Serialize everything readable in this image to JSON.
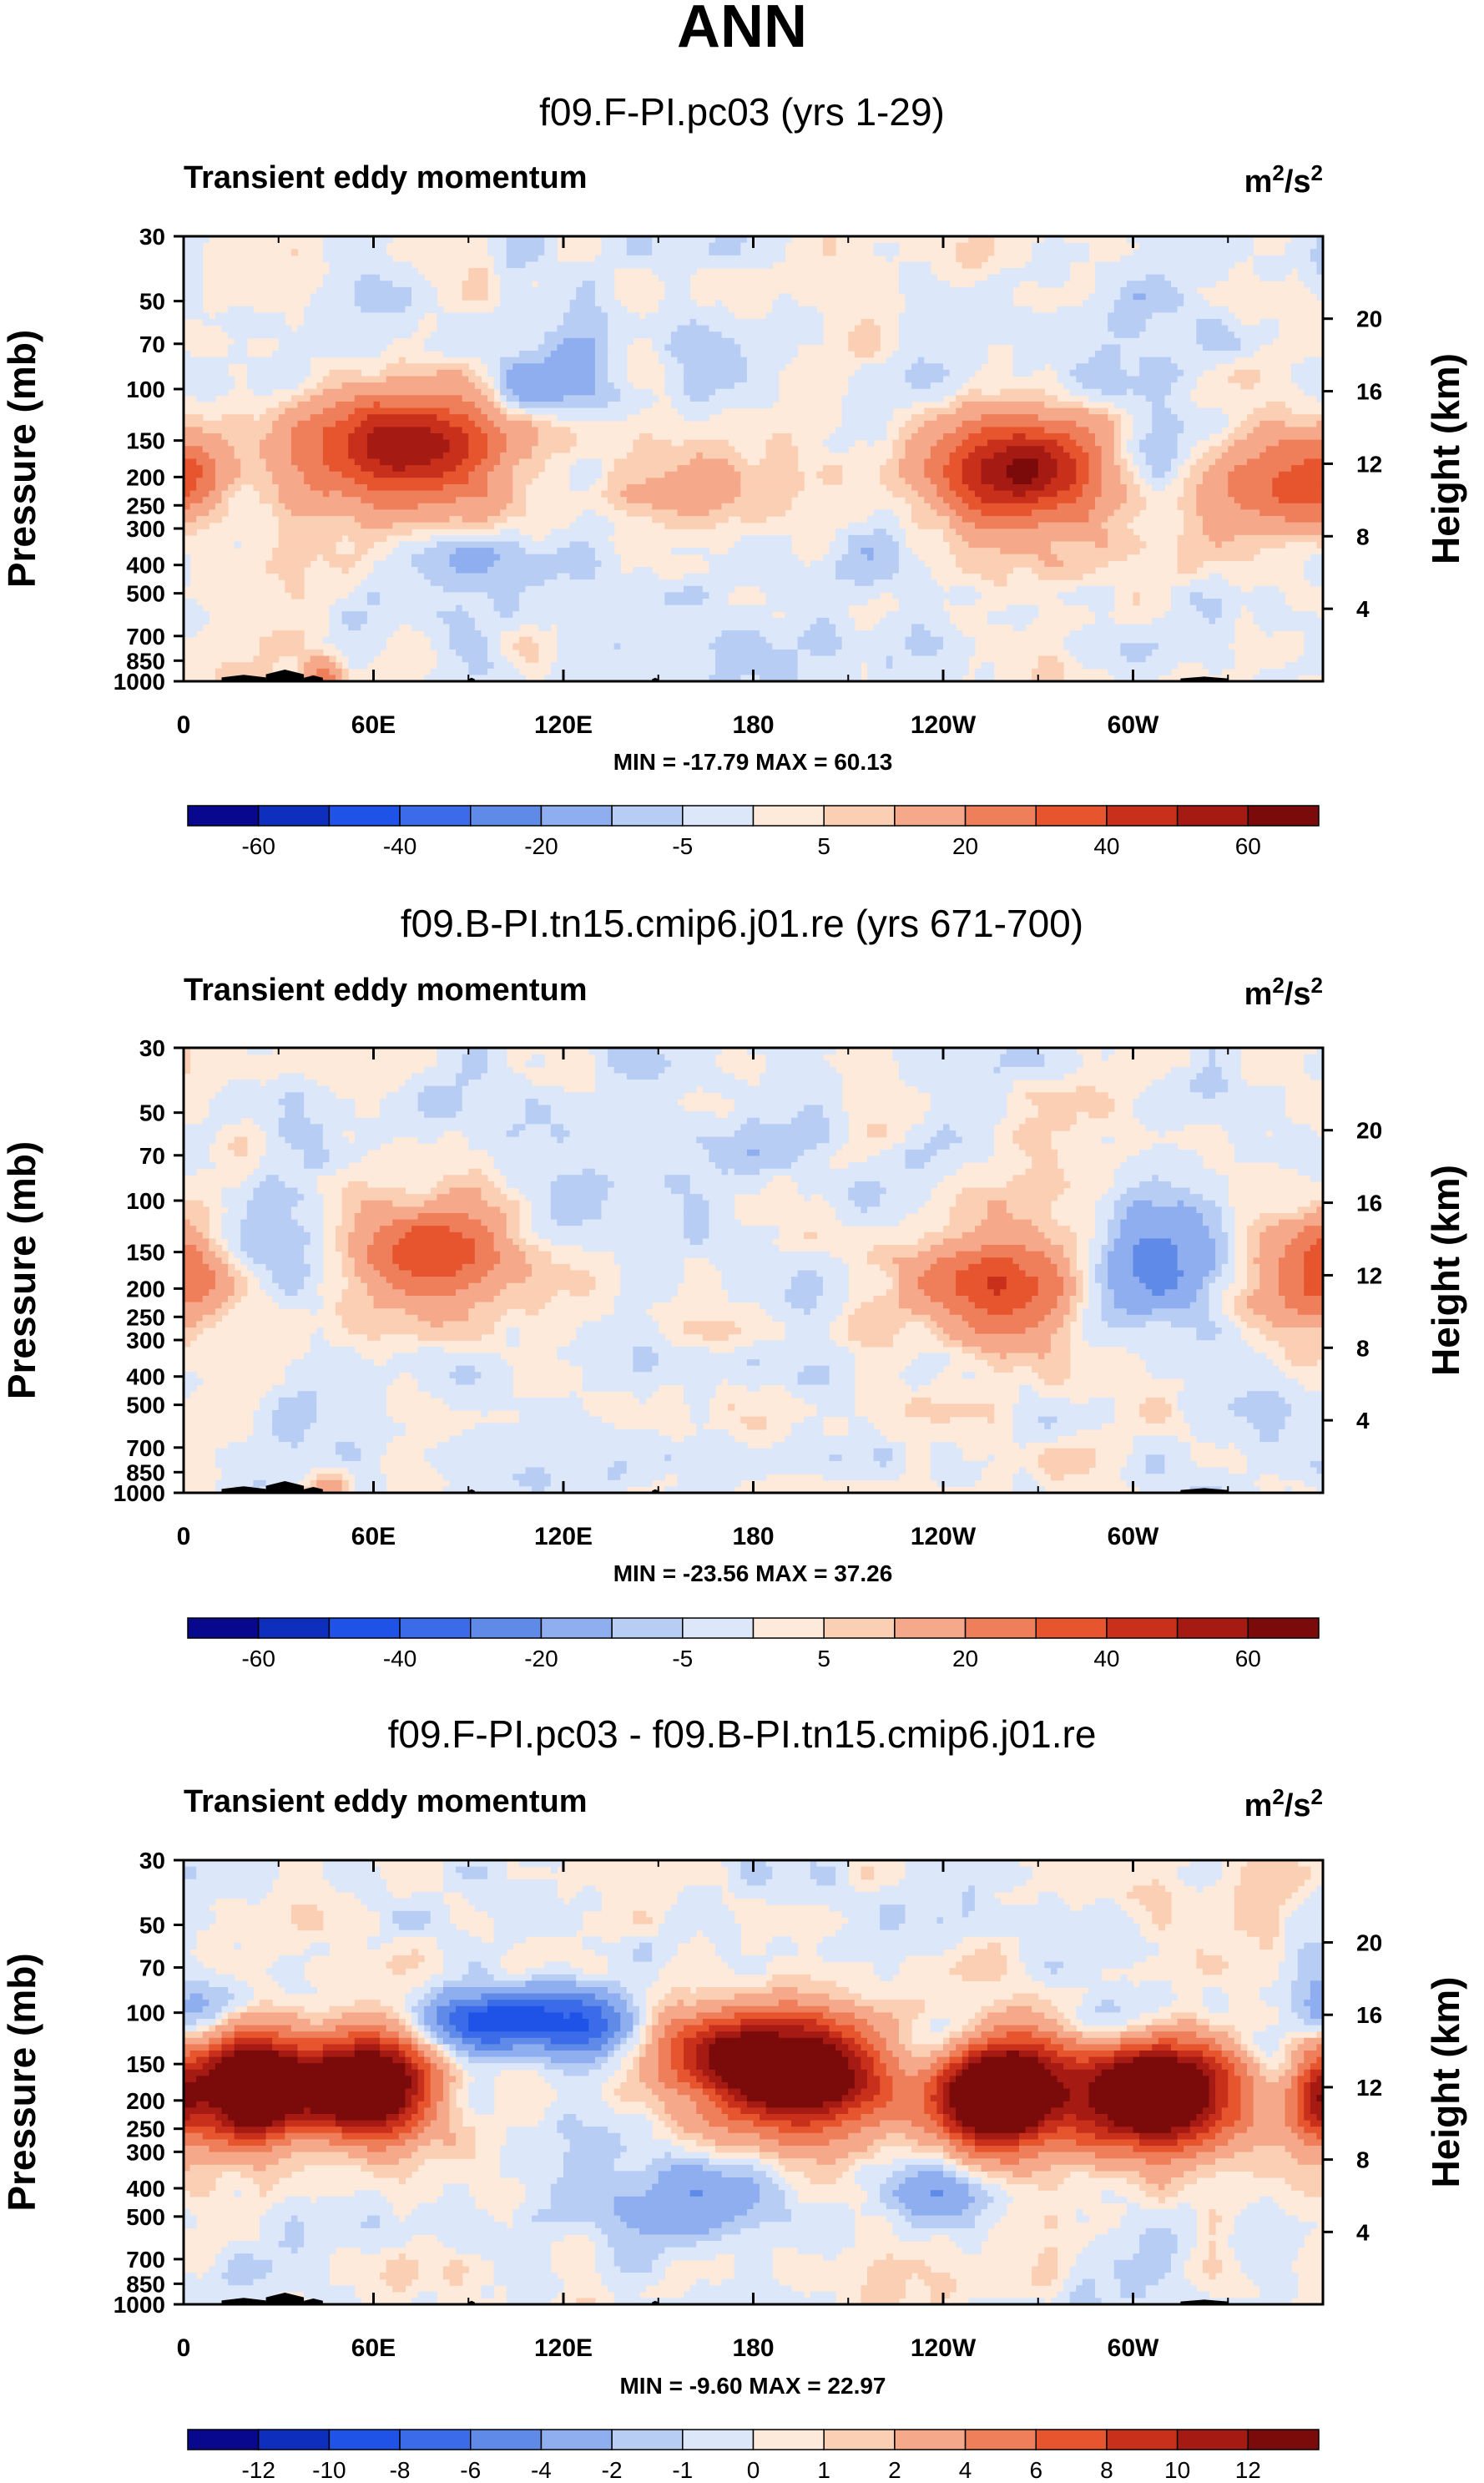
{
  "figure": {
    "title": "ANN"
  },
  "colors": {
    "full_scale": [
      "#08088f",
      "#0e2fbd",
      "#1f52e6",
      "#3b6be8",
      "#5f8ae8",
      "#8eaef0",
      "#b8cdf4",
      "#dce7fa",
      "#fdeadb",
      "#fbcfb3",
      "#f6a98a",
      "#ef7e5b",
      "#e7552f",
      "#c9301b",
      "#a51a12",
      "#7b0a0a"
    ],
    "diff_scale": [
      "#08088f",
      "#0e2fbd",
      "#1f52e6",
      "#3b6be8",
      "#5f8ae8",
      "#8eaef0",
      "#b8cdf4",
      "#dce7fa",
      "#fdeadb",
      "#fbcfb3",
      "#f6a98a",
      "#ef7e5b",
      "#e7552f",
      "#c9301b",
      "#a51a12",
      "#7b0a0a"
    ],
    "terrain": "#000000"
  },
  "panels": [
    {
      "subtitle": "f09.F-PI.pc03 (yrs 1-29)",
      "variable": "Transient eddy momentum",
      "units_base": "m",
      "units_sup1": "2",
      "units_mid": "/s",
      "units_sup2": "2",
      "ylabel": "Pressure (mb)",
      "ylabel_right": "Height (km)",
      "minmax": "MIN = -17.79  MAX = 60.13",
      "colorbar_labels": [
        "-60",
        "-40",
        "-20",
        "-5",
        "5",
        "20",
        "40",
        "60"
      ]
    },
    {
      "subtitle": "f09.B-PI.tn15.cmip6.j01.re (yrs 671-700)",
      "variable": "Transient eddy momentum",
      "units_base": "m",
      "units_sup1": "2",
      "units_mid": "/s",
      "units_sup2": "2",
      "ylabel": "Pressure (mb)",
      "ylabel_right": "Height (km)",
      "minmax": "MIN = -23.56  MAX = 37.26",
      "colorbar_labels": [
        "-60",
        "-40",
        "-20",
        "-5",
        "5",
        "20",
        "40",
        "60"
      ]
    },
    {
      "subtitle": "f09.F-PI.pc03 - f09.B-PI.tn15.cmip6.j01.re",
      "variable": "Transient eddy momentum",
      "units_base": "m",
      "units_sup1": "2",
      "units_mid": "/s",
      "units_sup2": "2",
      "ylabel": "Pressure (mb)",
      "ylabel_right": "Height (km)",
      "minmax": "MIN = -9.60  MAX = 22.97",
      "colorbar_labels": [
        "-12",
        "-10",
        "-8",
        "-6",
        "-4",
        "-2",
        "-1",
        "0",
        "1",
        "2",
        "4",
        "6",
        "8",
        "10",
        "12"
      ]
    }
  ],
  "chart_data": [
    {
      "type": "heatmap",
      "title": "f09.F-PI.pc03 (yrs 1-29)",
      "variable": "Transient eddy momentum",
      "units": "m2/s2",
      "x_ticks": [
        "0",
        "60E",
        "120E",
        "180",
        "120W",
        "60W"
      ],
      "x_tick_lon": [
        0,
        60,
        120,
        180,
        240,
        300
      ],
      "x_range": [
        0,
        360
      ],
      "y_ticks": [
        "30",
        "50",
        "70",
        "100",
        "150",
        "200",
        "250",
        "300",
        "400",
        "500",
        "700",
        "850",
        "1000"
      ],
      "y_tick_p": [
        30,
        50,
        70,
        100,
        150,
        200,
        250,
        300,
        400,
        500,
        700,
        850,
        1000
      ],
      "y_range_mb": [
        1000,
        30
      ],
      "y_right_ticks": [
        "20",
        "16",
        "12",
        "8",
        "4"
      ],
      "y_right_km": [
        20,
        16,
        12,
        8,
        4
      ],
      "min": -17.79,
      "max": 60.13,
      "levels": [
        -70,
        -60,
        -50,
        -40,
        -30,
        -20,
        -10,
        -5,
        0,
        5,
        10,
        20,
        30,
        40,
        50,
        60,
        70
      ],
      "features": [
        {
          "lon": 0,
          "p": 180,
          "value": 22,
          "sx": 12,
          "sy": 0.28
        },
        {
          "lon": 68,
          "p": 160,
          "value": 60,
          "sx": 22,
          "sy": 0.3
        },
        {
          "lon": 118,
          "p": 100,
          "value": -17,
          "sx": 14,
          "sy": 0.18
        },
        {
          "lon": 175,
          "p": 210,
          "value": 14,
          "sx": 28,
          "sy": 0.22
        },
        {
          "lon": 265,
          "p": 190,
          "value": 58,
          "sx": 18,
          "sy": 0.32
        },
        {
          "lon": 309,
          "p": 150,
          "value": -8,
          "sx": 12,
          "sy": 0.2
        },
        {
          "lon": 343,
          "p": 220,
          "value": 30,
          "sx": 13,
          "sy": 0.24
        },
        {
          "lon": 45,
          "p": 950,
          "value": 22,
          "sx": 5,
          "sy": 0.1
        },
        {
          "lon": 20,
          "p": 60,
          "value": -5,
          "sx": 10,
          "sy": 0.35
        },
        {
          "lon": 128,
          "p": 55,
          "value": -6,
          "sx": 15,
          "sy": 0.3
        },
        {
          "lon": 295,
          "p": 60,
          "value": -4,
          "sx": 20,
          "sy": 0.35
        },
        {
          "lon": 222,
          "p": 450,
          "value": -6,
          "sx": 22,
          "sy": 0.25
        },
        {
          "lon": 90,
          "p": 400,
          "value": -6,
          "sx": 18,
          "sy": 0.25
        }
      ]
    },
    {
      "type": "heatmap",
      "title": "f09.B-PI.tn15.cmip6.j01.re (yrs 671-700)",
      "variable": "Transient eddy momentum",
      "units": "m2/s2",
      "x_ticks": [
        "0",
        "60E",
        "120E",
        "180",
        "120W",
        "60W"
      ],
      "x_tick_lon": [
        0,
        60,
        120,
        180,
        240,
        300
      ],
      "x_range": [
        0,
        360
      ],
      "y_ticks": [
        "30",
        "50",
        "70",
        "100",
        "150",
        "200",
        "250",
        "300",
        "400",
        "500",
        "700",
        "850",
        "1000"
      ],
      "y_tick_p": [
        30,
        50,
        70,
        100,
        150,
        200,
        250,
        300,
        400,
        500,
        700,
        850,
        1000
      ],
      "y_range_mb": [
        1000,
        30
      ],
      "y_right_ticks": [
        "20",
        "16",
        "12",
        "8",
        "4"
      ],
      "y_right_km": [
        20,
        16,
        12,
        8,
        4
      ],
      "min": -23.56,
      "max": 37.26,
      "levels": [
        -70,
        -60,
        -50,
        -40,
        -30,
        -20,
        -10,
        -5,
        0,
        5,
        10,
        20,
        30,
        40,
        50,
        60,
        70
      ],
      "features": [
        {
          "lon": 0,
          "p": 160,
          "value": 18,
          "sx": 8,
          "sy": 0.3
        },
        {
          "lon": 35,
          "p": 160,
          "value": -14,
          "sx": 10,
          "sy": 0.25
        },
        {
          "lon": 80,
          "p": 155,
          "value": 36,
          "sx": 20,
          "sy": 0.32
        },
        {
          "lon": 118,
          "p": 100,
          "value": -9,
          "sx": 14,
          "sy": 0.16
        },
        {
          "lon": 258,
          "p": 190,
          "value": 35,
          "sx": 20,
          "sy": 0.32
        },
        {
          "lon": 305,
          "p": 160,
          "value": -24,
          "sx": 17,
          "sy": 0.3
        },
        {
          "lon": 350,
          "p": 200,
          "value": 24,
          "sx": 15,
          "sy": 0.3
        },
        {
          "lon": 46,
          "p": 950,
          "value": 20,
          "sx": 5,
          "sy": 0.1
        },
        {
          "lon": 150,
          "p": 60,
          "value": -5,
          "sx": 40,
          "sy": 0.4
        },
        {
          "lon": 40,
          "p": 700,
          "value": -5,
          "sx": 20,
          "sy": 0.3
        }
      ]
    },
    {
      "type": "heatmap",
      "title": "f09.F-PI.pc03 - f09.B-PI.tn15.cmip6.j01.re",
      "variable": "Transient eddy momentum",
      "units": "m2/s2",
      "x_ticks": [
        "0",
        "60E",
        "120E",
        "180",
        "120W",
        "60W"
      ],
      "x_tick_lon": [
        0,
        60,
        120,
        180,
        240,
        300
      ],
      "x_range": [
        0,
        360
      ],
      "y_ticks": [
        "30",
        "50",
        "70",
        "100",
        "150",
        "200",
        "250",
        "300",
        "400",
        "500",
        "700",
        "850",
        "1000"
      ],
      "y_tick_p": [
        30,
        50,
        70,
        100,
        150,
        200,
        250,
        300,
        400,
        500,
        700,
        850,
        1000
      ],
      "y_range_mb": [
        1000,
        30
      ],
      "y_right_ticks": [
        "20",
        "16",
        "12",
        "8",
        "4"
      ],
      "y_right_km": [
        20,
        16,
        12,
        8,
        4
      ],
      "min": -9.6,
      "max": 22.97,
      "levels": [
        -14,
        -12,
        -10,
        -8,
        -6,
        -4,
        -2,
        -1,
        0,
        1,
        2,
        4,
        6,
        8,
        10,
        12,
        14
      ],
      "features": [
        {
          "lon": 22,
          "p": 180,
          "value": 20,
          "sx": 13,
          "sy": 0.28
        },
        {
          "lon": 58,
          "p": 180,
          "value": 20,
          "sx": 14,
          "sy": 0.28
        },
        {
          "lon": 95,
          "p": 105,
          "value": -9,
          "sx": 14,
          "sy": 0.16
        },
        {
          "lon": 125,
          "p": 110,
          "value": -7,
          "sx": 14,
          "sy": 0.18
        },
        {
          "lon": 193,
          "p": 160,
          "value": 18,
          "sx": 20,
          "sy": 0.3
        },
        {
          "lon": 165,
          "p": 130,
          "value": 6,
          "sx": 15,
          "sy": 0.25
        },
        {
          "lon": 257,
          "p": 190,
          "value": 22,
          "sx": 14,
          "sy": 0.3
        },
        {
          "lon": 307,
          "p": 190,
          "value": 20,
          "sx": 18,
          "sy": 0.28
        },
        {
          "lon": 238,
          "p": 130,
          "value": -4,
          "sx": 10,
          "sy": 0.2
        },
        {
          "lon": 292,
          "p": 110,
          "value": -3,
          "sx": 10,
          "sy": 0.16
        },
        {
          "lon": 240,
          "p": 420,
          "value": -4,
          "sx": 12,
          "sy": 0.2
        },
        {
          "lon": 155,
          "p": 420,
          "value": -3,
          "sx": 20,
          "sy": 0.25
        },
        {
          "lon": 5,
          "p": 100,
          "value": -3,
          "sx": 8,
          "sy": 0.2
        },
        {
          "lon": 358,
          "p": 200,
          "value": 8,
          "sx": 6,
          "sy": 0.25
        }
      ]
    }
  ]
}
